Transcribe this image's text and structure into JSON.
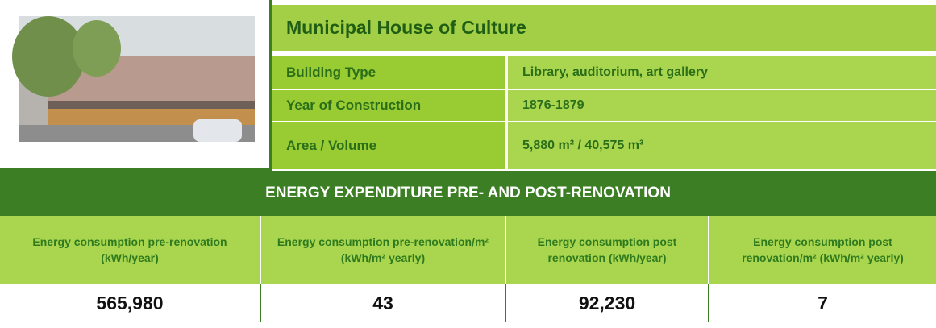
{
  "header": {
    "title": "Municipal House of Culture"
  },
  "details": [
    {
      "label": "Building Type",
      "value": "Library, auditorium, art gallery"
    },
    {
      "label": "Year of Construction",
      "value": "1876-1879"
    },
    {
      "label": "Area / Volume",
      "value": "5,880 m² / 40,575 m³"
    }
  ],
  "section_title": "ENERGY EXPENDITURE PRE- AND POST-RENOVATION",
  "table": {
    "columns": [
      "Energy consumption pre-renovation (kWh/year)",
      "Energy consumption pre-renovation/m² (kWh/m² yearly)",
      "Energy consumption post renovation (kWh/year)",
      "Energy consumption post renovation/m² (kWh/m² yearly)"
    ],
    "values": [
      "565,980",
      "43",
      "92,230",
      "7"
    ]
  }
}
